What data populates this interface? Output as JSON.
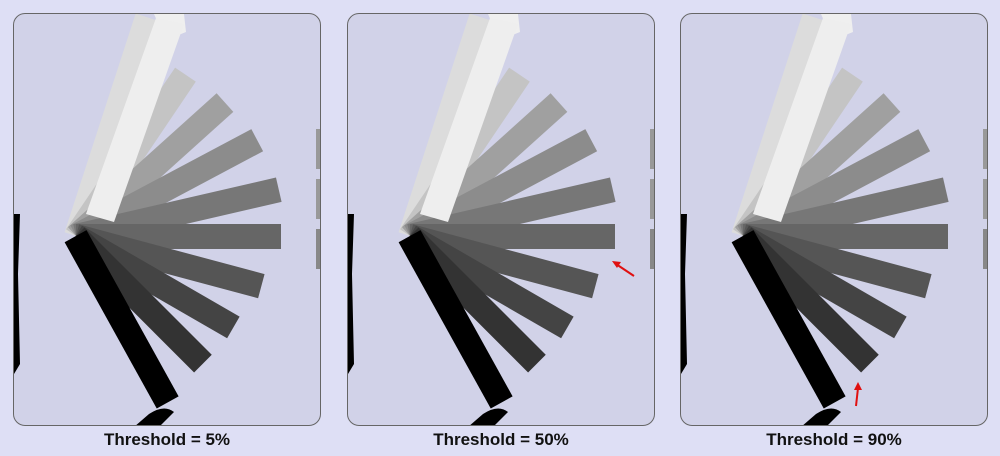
{
  "panels": [
    {
      "caption": "Threshold = 5%",
      "threshold_percent": 5,
      "arrow": "none"
    },
    {
      "caption": "Threshold = 50%",
      "threshold_percent": 50,
      "arrow": "right-edge-of-horizontal-bar"
    },
    {
      "caption": "Threshold = 90%",
      "threshold_percent": 90,
      "arrow": "end-of-second-darkest-bar"
    }
  ],
  "colors": {
    "background": "#dedff5",
    "panel": "#d1d2e8",
    "arrow": "#e01010"
  }
}
